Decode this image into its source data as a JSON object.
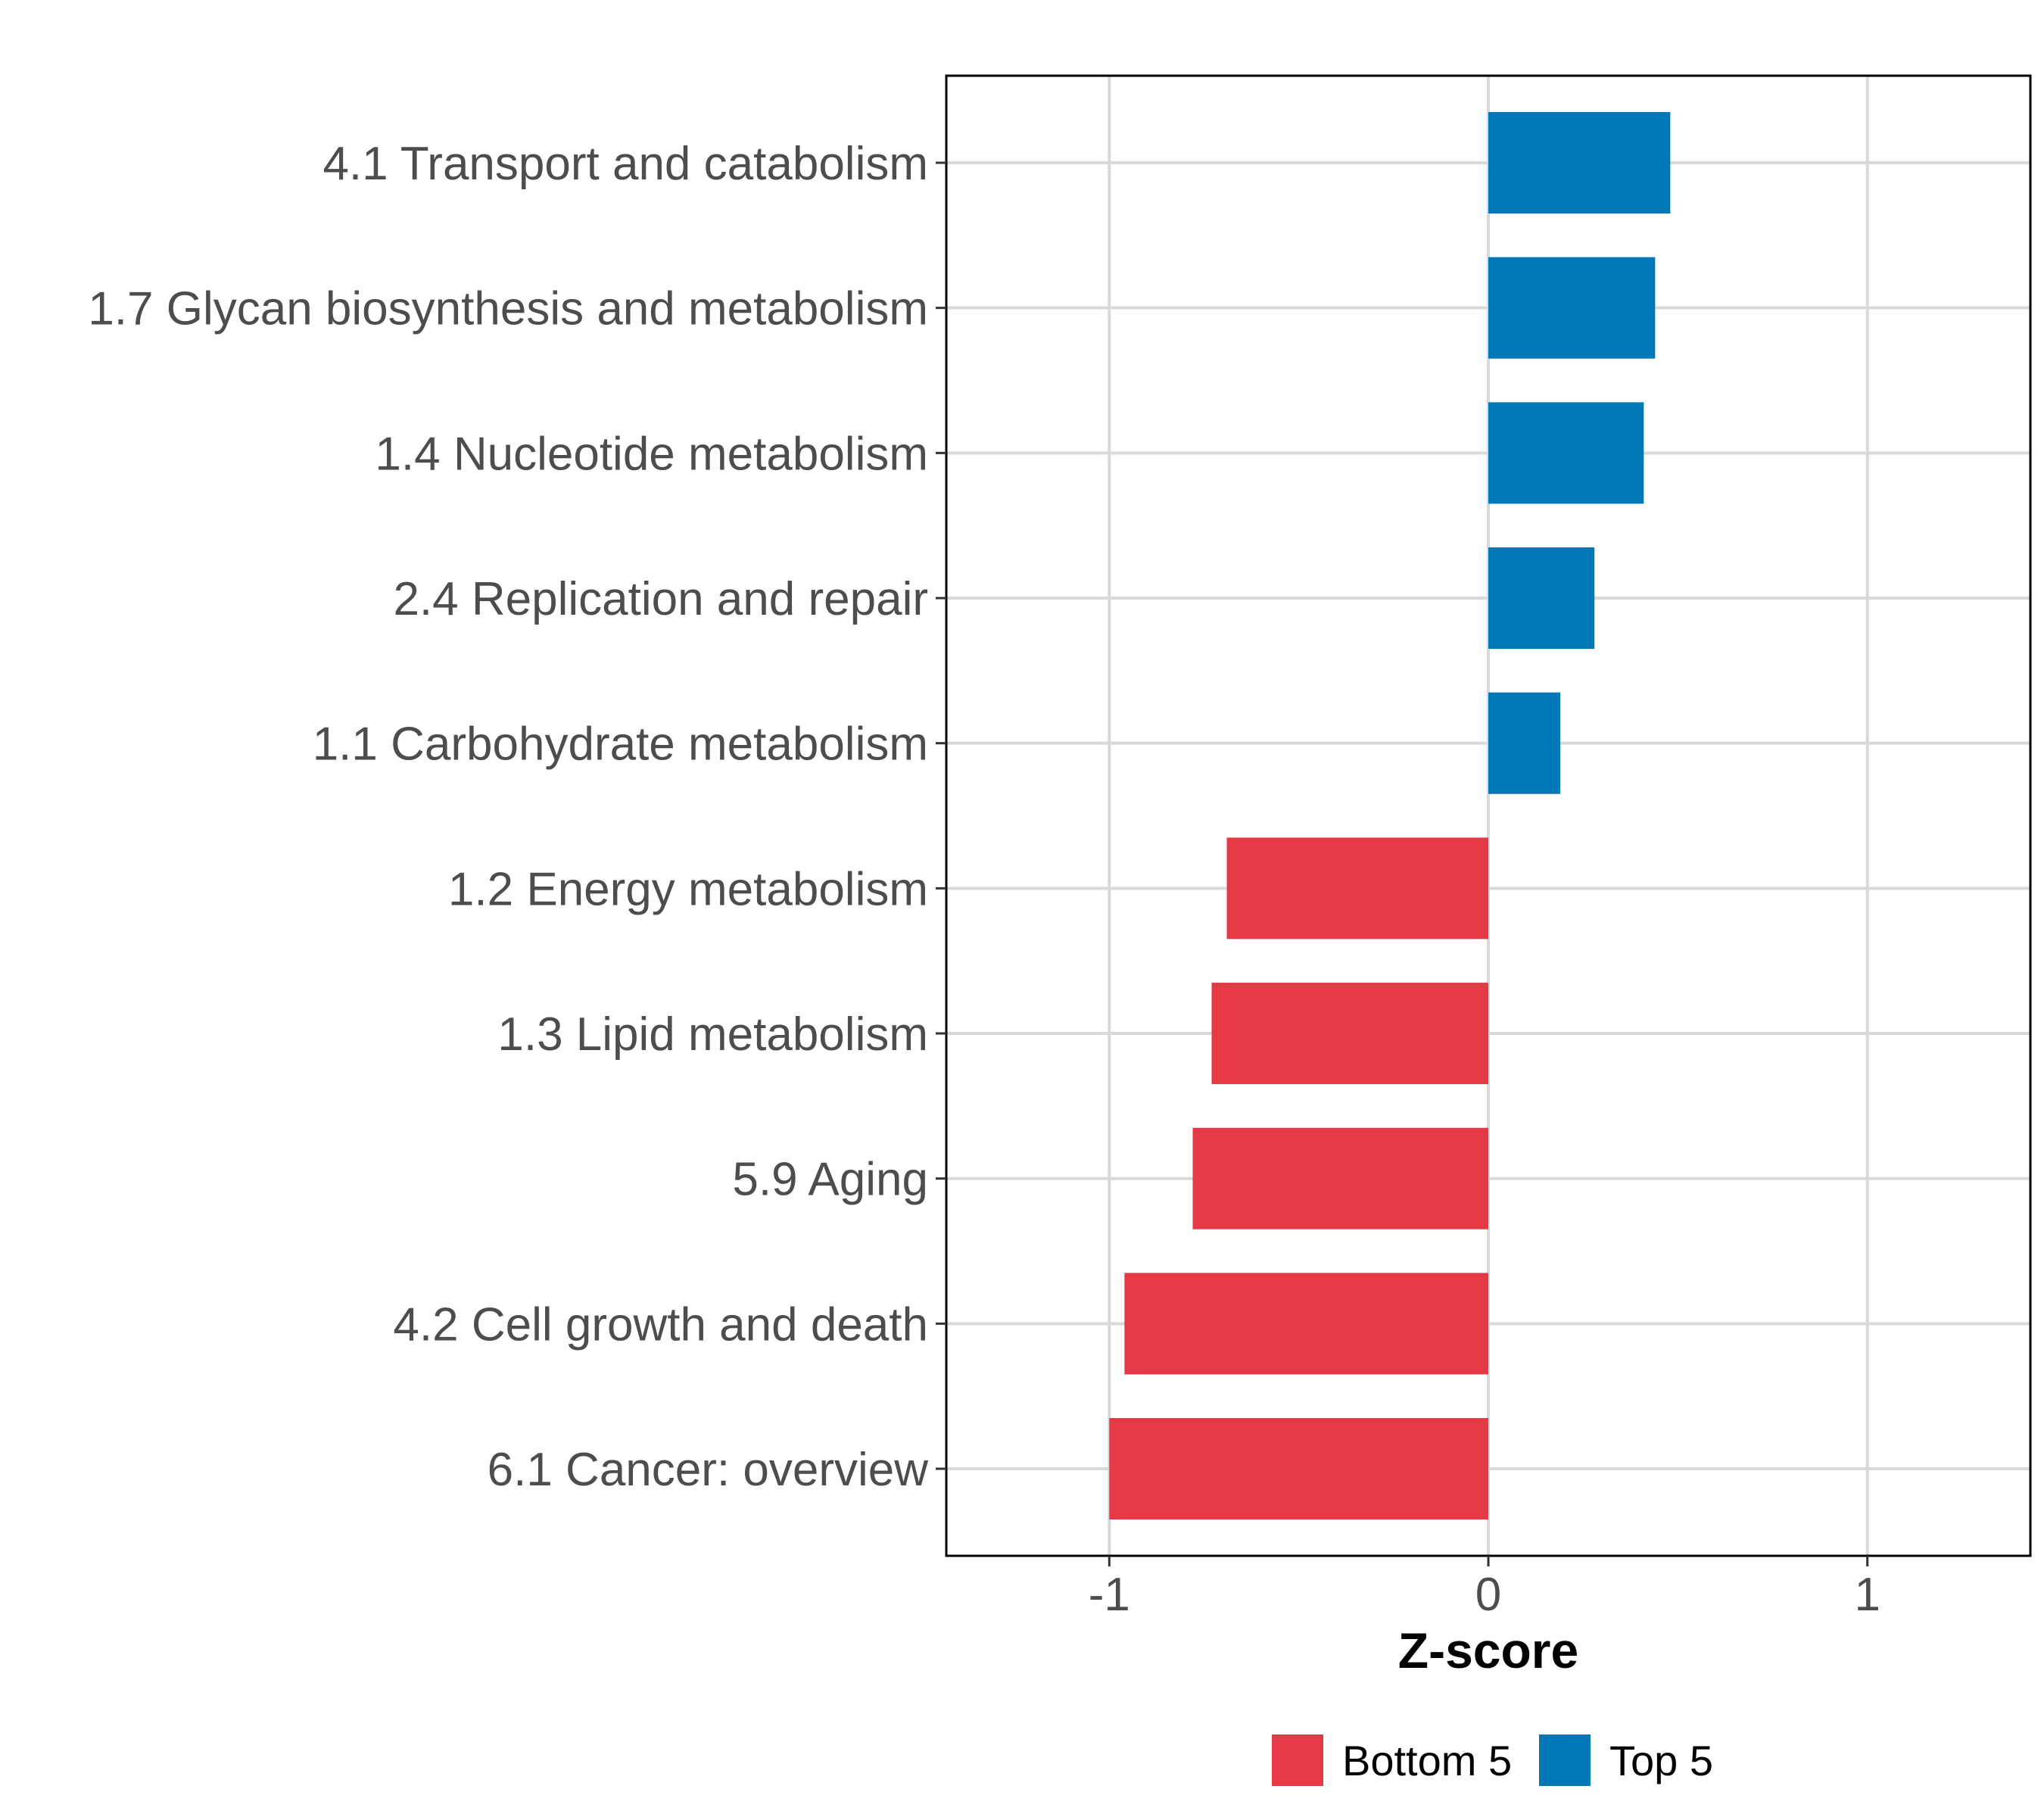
{
  "chart_data": {
    "type": "bar",
    "orientation": "horizontal",
    "title": "",
    "xlabel": "Z-score",
    "ylabel": "",
    "xlim": [
      -1.43,
      1.43
    ],
    "x_ticks": [
      -1,
      0,
      1
    ],
    "x_tick_labels": [
      "-1",
      "0",
      "1"
    ],
    "grid": true,
    "legend_position": "bottom",
    "categories": [
      "4.1 Transport and catabolism",
      "1.7 Glycan biosynthesis and metabolism",
      "1.4 Nucleotide metabolism",
      "2.4 Replication and repair",
      "1.1 Carbohydrate metabolism",
      "1.2 Energy metabolism",
      "1.3 Lipid metabolism",
      "5.9 Aging",
      "4.2 Cell growth and death",
      "6.1 Cancer: overview"
    ],
    "values": [
      0.48,
      0.44,
      0.41,
      0.28,
      0.19,
      -0.69,
      -0.73,
      -0.78,
      -0.96,
      -1.0
    ],
    "groups": [
      "Top 5",
      "Top 5",
      "Top 5",
      "Top 5",
      "Top 5",
      "Bottom 5",
      "Bottom 5",
      "Bottom 5",
      "Bottom 5",
      "Bottom 5"
    ],
    "legend": [
      {
        "name": "Bottom 5",
        "color": "#e63946"
      },
      {
        "name": "Top 5",
        "color": "#0077b6"
      }
    ]
  }
}
